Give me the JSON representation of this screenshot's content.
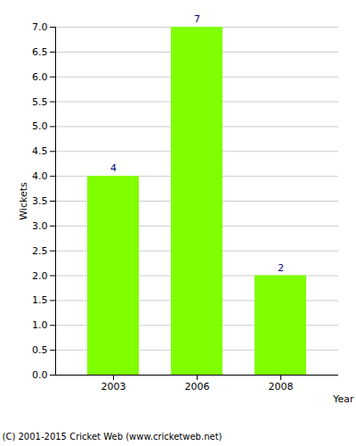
{
  "chart_data": {
    "type": "bar",
    "categories": [
      "2003",
      "2006",
      "2008"
    ],
    "values": [
      4,
      7,
      2
    ],
    "color": "#80ff00",
    "x_label": "Year",
    "y_label": "Wickets",
    "ylim": [
      0,
      7
    ],
    "yticks": [
      {
        "value": 0,
        "label": "0.0"
      },
      0.5,
      {
        "value": 1,
        "label": "1.0"
      },
      1.5,
      {
        "value": 2,
        "label": "2.0"
      },
      2.5,
      {
        "value": 3,
        "label": "3.0"
      },
      3.5,
      {
        "value": 4,
        "label": "4.0"
      },
      4.5,
      {
        "value": 5,
        "label": "5.0"
      },
      5.5,
      {
        "value": 6,
        "label": "6.0"
      },
      6.5,
      {
        "value": 7,
        "label": "7.0"
      }
    ],
    "grid": true,
    "data_labels": true,
    "caption": "(C) 2001-2015 Cricket Web (www.cricketweb.net)"
  }
}
